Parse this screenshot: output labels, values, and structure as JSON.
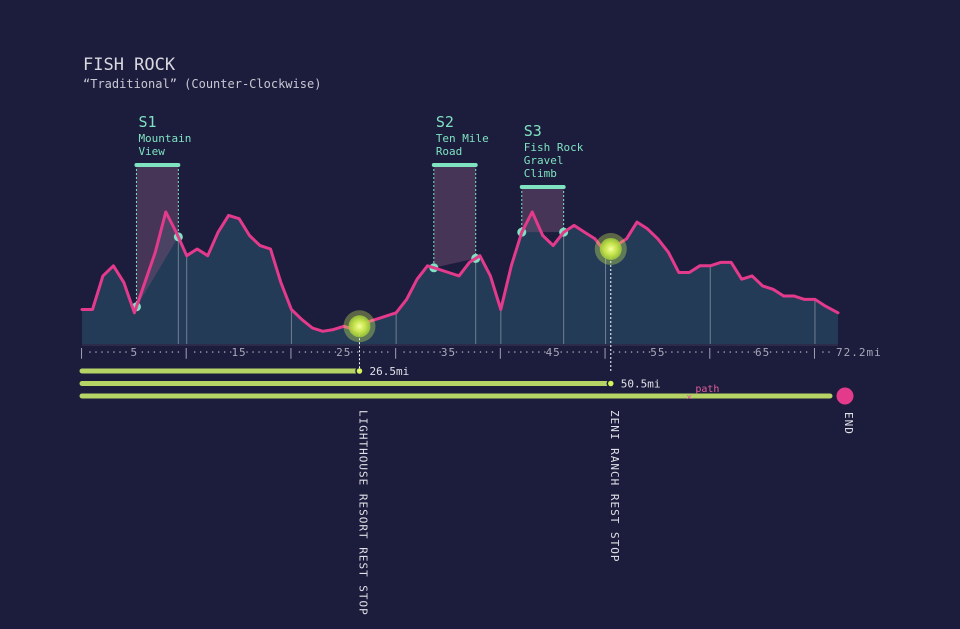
{
  "header": {
    "title": "FISH ROCK",
    "subtitle": "“Traditional” (Counter-Clockwise)"
  },
  "colors": {
    "background": "#1c1c3c",
    "area_fill": "#24415c",
    "line": "#e43a8c",
    "segment": "#7fe3c2",
    "bar": "#c8e86a",
    "stop": "#d4f25a",
    "end": "#e43a8c"
  },
  "chart_data": {
    "type": "area",
    "x_unit": "mi",
    "xlim": [
      0,
      72.2
    ],
    "x_tick_labels": [
      "5",
      "15",
      "25",
      "35",
      "45",
      "55",
      "65",
      "72.2mi"
    ],
    "x_tick_values": [
      5,
      15,
      25,
      35,
      45,
      55,
      65,
      72.2
    ],
    "x_minor_dividers": [
      10,
      20,
      30,
      40,
      50,
      60,
      70
    ],
    "elevation_profile": {
      "x": [
        0,
        1,
        2,
        3,
        4,
        5,
        6,
        7,
        8,
        9,
        10,
        11,
        12,
        13,
        14,
        15,
        16,
        17,
        18,
        19,
        20,
        21,
        22,
        23,
        24,
        25,
        26,
        27,
        28,
        29,
        30,
        31,
        32,
        33,
        34,
        35,
        36,
        37,
        38,
        39,
        40,
        41,
        42,
        43,
        44,
        45,
        46,
        47,
        48,
        49,
        50,
        51,
        52,
        53,
        54,
        55,
        56,
        57,
        58,
        59,
        60,
        61,
        62,
        63,
        64,
        65,
        66,
        67,
        68,
        69,
        70,
        71,
        72.2
      ],
      "y": [
        0.14,
        0.14,
        0.34,
        0.4,
        0.3,
        0.12,
        0.3,
        0.48,
        0.72,
        0.6,
        0.46,
        0.5,
        0.46,
        0.6,
        0.7,
        0.68,
        0.58,
        0.52,
        0.5,
        0.3,
        0.14,
        0.08,
        0.03,
        0.01,
        0.02,
        0.04,
        0.02,
        0.06,
        0.08,
        0.1,
        0.12,
        0.2,
        0.32,
        0.4,
        0.38,
        0.36,
        0.34,
        0.42,
        0.46,
        0.34,
        0.14,
        0.4,
        0.6,
        0.72,
        0.58,
        0.52,
        0.6,
        0.64,
        0.6,
        0.56,
        0.48,
        0.52,
        0.56,
        0.66,
        0.62,
        0.56,
        0.48,
        0.36,
        0.36,
        0.4,
        0.4,
        0.42,
        0.42,
        0.32,
        0.34,
        0.28,
        0.26,
        0.22,
        0.22,
        0.2,
        0.2,
        0.16,
        0.12
      ]
    },
    "segments": [
      {
        "id": "S1",
        "name_lines": [
          "Mountain",
          "View"
        ],
        "x_start": 5.2,
        "x_end": 9.2
      },
      {
        "id": "S2",
        "name_lines": [
          "Ten Mile",
          "Road"
        ],
        "x_start": 33.6,
        "x_end": 37.6
      },
      {
        "id": "S3",
        "name_lines": [
          "Fish Rock",
          "Gravel",
          "Climb"
        ],
        "x_start": 42.0,
        "x_end": 46.0
      }
    ],
    "rest_stops": [
      {
        "x": 26.5,
        "label": "LIGHTHOUSE RESORT REST STOP",
        "distance_label": "26.5mi"
      },
      {
        "x": 50.5,
        "label": "ZENI RANCH REST STOP",
        "distance_label": "50.5mi"
      }
    ],
    "progress_bars": [
      {
        "to": 26.5,
        "label": "26.5mi"
      },
      {
        "to": 50.5,
        "label": "50.5mi"
      },
      {
        "to": 72.2,
        "label": ""
      }
    ],
    "path_label": "path",
    "path_marker_x": 58.0,
    "end_label": "END"
  }
}
